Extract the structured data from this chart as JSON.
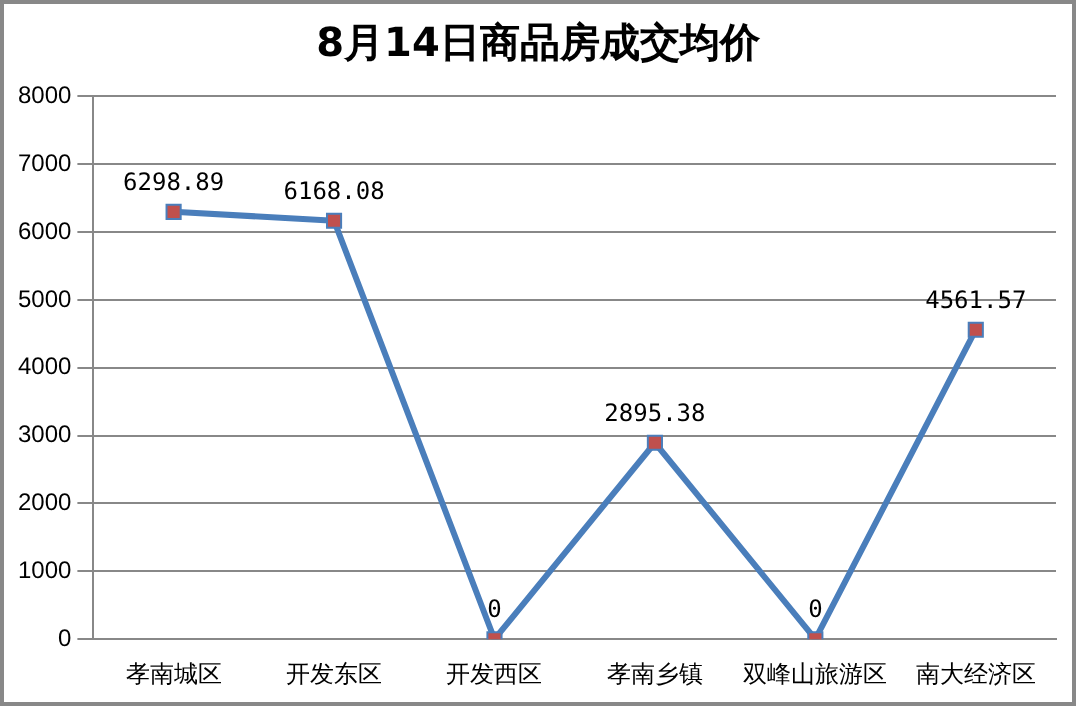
{
  "chart_data": {
    "type": "line",
    "title": "8月14日商品房成交均价",
    "categories": [
      "孝南城区",
      "开发东区",
      "开发西区",
      "孝南乡镇",
      "双峰山旅游区",
      "南大经济区"
    ],
    "series": [
      {
        "color": "#4a7ebb",
        "values": [
          6298.89,
          6168.08,
          0,
          2895.38,
          0,
          4561.57
        ]
      }
    ],
    "value_labels": [
      "6298.89",
      "6168.08",
      "0",
      "2895.38",
      "0",
      "4561.57"
    ],
    "ylim": [
      0,
      8000
    ],
    "yticks": [
      0,
      1000,
      2000,
      3000,
      4000,
      5000,
      6000,
      7000,
      8000
    ],
    "grid": "y",
    "legend": false,
    "marker": "square",
    "line_style": "solid"
  }
}
